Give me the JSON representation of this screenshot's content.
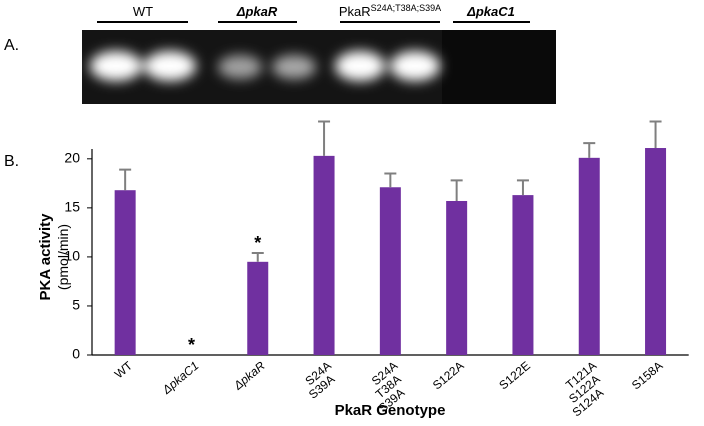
{
  "panel_a": {
    "label": "A.",
    "lanes": [
      {
        "label": "WT"
      },
      {
        "label": "ΔpkaR"
      },
      {
        "label": "PkaR",
        "superscript": "S24A;T38A;S39A"
      },
      {
        "label": "ΔpkaC1"
      }
    ]
  },
  "panel_b": {
    "label": "B."
  },
  "chart_data": {
    "type": "bar",
    "y_label": [
      "PKA activity",
      "(pmol/min)"
    ],
    "x_label": "PkaR Genotype",
    "categories": [
      [
        "WT"
      ],
      [
        "ΔpkaC1"
      ],
      [
        "ΔpkaR"
      ],
      [
        "S24A",
        "S39A"
      ],
      [
        "S24A",
        "T38A",
        "S39A"
      ],
      [
        "S122A"
      ],
      [
        "S122E"
      ],
      [
        "T121A",
        "S122A",
        "S124A"
      ],
      [
        "S158A"
      ]
    ],
    "values": [
      16.8,
      0,
      9.5,
      20.3,
      17.1,
      15.7,
      16.3,
      20.1,
      21.1
    ],
    "errors": [
      2.1,
      0,
      0.9,
      3.5,
      1.4,
      2.1,
      1.5,
      1.5,
      2.7
    ],
    "markers": [
      null,
      "*",
      "*",
      null,
      null,
      null,
      null,
      null,
      null
    ],
    "color": "#7030a0",
    "error_color": "#7f7f7f",
    "ylim": [
      0,
      21
    ],
    "yticks": [
      0,
      5,
      10,
      15,
      20
    ]
  }
}
